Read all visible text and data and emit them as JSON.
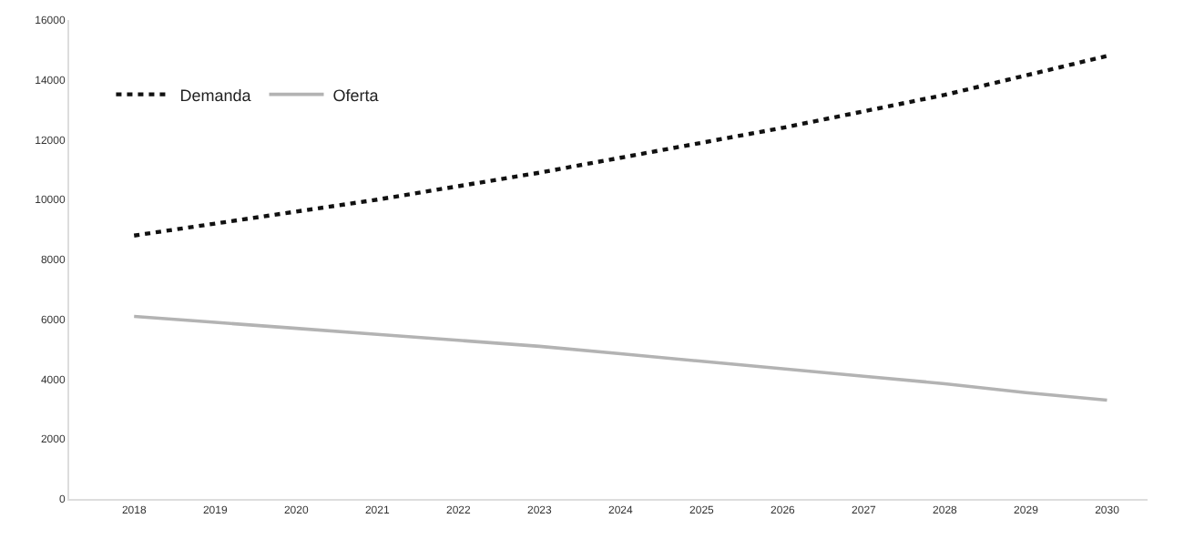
{
  "chart_data": {
    "type": "line",
    "categories": [
      "2018",
      "2019",
      "2020",
      "2021",
      "2022",
      "2023",
      "2024",
      "2025",
      "2026",
      "2027",
      "2028",
      "2029",
      "2030"
    ],
    "series": [
      {
        "name": "Demanda",
        "color": "#111111",
        "line_style": "dotted",
        "values": [
          8800,
          9200,
          9600,
          10000,
          10450,
          10900,
          11400,
          11900,
          12400,
          12950,
          13500,
          14150,
          14800
        ]
      },
      {
        "name": "Oferta",
        "color": "#b3b3b3",
        "line_style": "solid",
        "values": [
          6100,
          5900,
          5700,
          5500,
          5300,
          5100,
          4850,
          4600,
          4350,
          4100,
          3850,
          3550,
          3300
        ]
      }
    ],
    "ylim": [
      0,
      16000
    ],
    "yticks": [
      0,
      2000,
      4000,
      6000,
      8000,
      10000,
      12000,
      14000,
      16000
    ],
    "legend": "top left"
  }
}
